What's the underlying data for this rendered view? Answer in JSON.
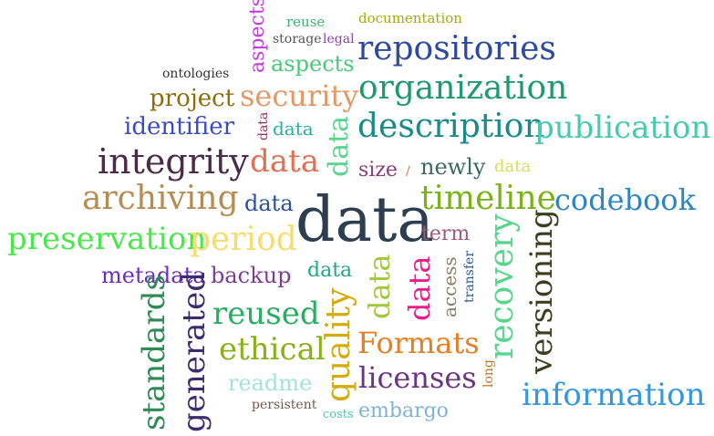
{
  "words": [
    {
      "text": "data",
      "color": "#2c3e50"
    },
    {
      "text": "repositories",
      "color": "#2e4a9e"
    },
    {
      "text": "organization",
      "color": "#1f9a6e"
    },
    {
      "text": "description",
      "color": "#1a8a8a"
    },
    {
      "text": "publication",
      "color": "#48c9b0"
    },
    {
      "text": "integrity",
      "color": "#4a2b4a"
    },
    {
      "text": "archiving",
      "color": "#b58d52"
    },
    {
      "text": "timeline",
      "color": "#7ab317"
    },
    {
      "text": "codebook",
      "color": "#2e86c1"
    },
    {
      "text": "preservation",
      "color": "#4be84b"
    },
    {
      "text": "period",
      "color": "#f7dc6f"
    },
    {
      "text": "security",
      "color": "#e59866"
    },
    {
      "text": "project",
      "color": "#8b6d0e"
    },
    {
      "text": "identifier",
      "color": "#3b4cc0"
    },
    {
      "text": "metadata",
      "color": "#6a2fbf"
    },
    {
      "text": "backup",
      "color": "#7d3c98"
    },
    {
      "text": "reused",
      "color": "#27ae60"
    },
    {
      "text": "ethical",
      "color": "#8bb11a"
    },
    {
      "text": "Formats",
      "color": "#e67e22"
    },
    {
      "text": "licenses",
      "color": "#6c3483"
    },
    {
      "text": "information",
      "color": "#3498db"
    },
    {
      "text": "recovery",
      "color": "#58d68d"
    },
    {
      "text": "versioning",
      "color": "#3d3d1f"
    },
    {
      "text": "standards",
      "color": "#2e8b57"
    },
    {
      "text": "generated",
      "color": "#3b2d6b"
    },
    {
      "text": "quality",
      "color": "#d4ac0d"
    },
    {
      "text": "aspects",
      "color": "#48c978"
    },
    {
      "text": "aspects",
      "color": "#c03be0"
    },
    {
      "text": "ontologies",
      "color": "#333333"
    },
    {
      "text": "reuse",
      "color": "#3cb371"
    },
    {
      "text": "storage",
      "color": "#555555"
    },
    {
      "text": "legal",
      "color": "#8e44ad"
    },
    {
      "text": "documentation",
      "color": "#a9a910"
    },
    {
      "text": "size",
      "color": "#8b3a7a"
    },
    {
      "text": "newly",
      "color": "#3b6b5b"
    },
    {
      "text": "term",
      "color": "#a05a7a"
    },
    {
      "text": "access",
      "color": "#8a7e6a"
    },
    {
      "text": "transfer",
      "color": "#2e5a8e"
    },
    {
      "text": "readme",
      "color": "#a3e4d7"
    },
    {
      "text": "persistent",
      "color": "#7a5a4a"
    },
    {
      "text": "costs",
      "color": "#48c9b0"
    },
    {
      "text": "embargo",
      "color": "#7fb3d5"
    },
    {
      "text": "long",
      "color": "#c0761a"
    },
    {
      "text": "data",
      "color": "#e17055"
    },
    {
      "text": "data",
      "color": "#2b4f9e"
    },
    {
      "text": "data",
      "color": "#27ae9f"
    },
    {
      "text": "data",
      "color": "#8e2e5a"
    },
    {
      "text": "data",
      "color": "#1fa88a"
    },
    {
      "text": "data",
      "color": "#a3c93b"
    },
    {
      "text": "data",
      "color": "#d4e157"
    },
    {
      "text": "data",
      "color": "#58d68d"
    },
    {
      "text": "data",
      "color": "#e91e8c"
    }
  ]
}
